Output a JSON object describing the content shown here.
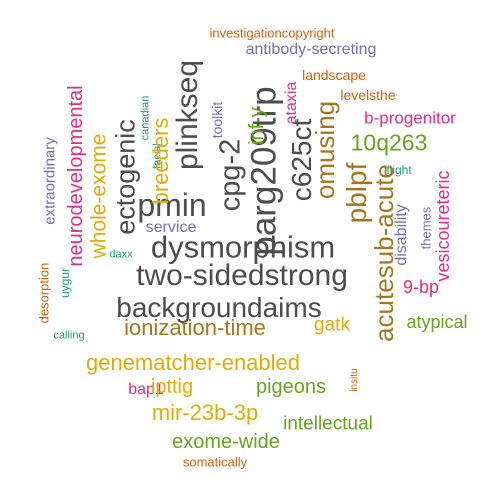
{
  "palette": {
    "grey": "#4d4d4d",
    "orange": "#d95f02",
    "purple": "#7570b3",
    "magenta": "#e7298a",
    "green": "#66a61e",
    "gold": "#e6ab02",
    "brown": "#a6761d",
    "teal": "#1b9e77"
  },
  "words": [
    {
      "text": "investigationcopyright",
      "color": "orange"
    },
    {
      "text": "antibody-secreting",
      "color": "purple"
    },
    {
      "text": "landscape",
      "color": "orange"
    },
    {
      "text": "levelsthe",
      "color": "orange"
    },
    {
      "text": "b-progenitor",
      "color": "magenta"
    },
    {
      "text": "10q263",
      "color": "green"
    },
    {
      "text": "flight",
      "color": "teal"
    },
    {
      "text": "omusing",
      "color": "brown"
    },
    {
      "text": "pblpf",
      "color": "brown"
    },
    {
      "text": "c625ct",
      "color": "grey"
    },
    {
      "text": "ataxia",
      "color": "magenta"
    },
    {
      "text": "parg209trp",
      "color": "grey"
    },
    {
      "text": "cpg-2",
      "color": "grey"
    },
    {
      "text": "inf-y",
      "color": "green"
    },
    {
      "text": "toolkit",
      "color": "purple"
    },
    {
      "text": "plinkseq",
      "color": "grey"
    },
    {
      "text": "canadian",
      "color": "teal"
    },
    {
      "text": "facial",
      "color": "teal"
    },
    {
      "text": "pmin",
      "color": "grey"
    },
    {
      "text": "breeders",
      "color": "gold"
    },
    {
      "text": "ectogenic",
      "color": "grey"
    },
    {
      "text": "whole-exome",
      "color": "gold"
    },
    {
      "text": "neurodevelopmental",
      "color": "magenta"
    },
    {
      "text": "extraordinary",
      "color": "purple"
    },
    {
      "text": "service",
      "color": "purple"
    },
    {
      "text": "dysmorphism",
      "color": "grey"
    },
    {
      "text": "two-sidedstrong",
      "color": "grey"
    },
    {
      "text": "daxx",
      "color": "teal"
    },
    {
      "text": "acutesub-acute",
      "color": "brown"
    },
    {
      "text": "disability",
      "color": "purple"
    },
    {
      "text": "themes",
      "color": "purple"
    },
    {
      "text": "vesicoureteric",
      "color": "magenta"
    },
    {
      "text": "9-bp",
      "color": "magenta"
    },
    {
      "text": "backgroundaims",
      "color": "grey"
    },
    {
      "text": "desorption",
      "color": "orange"
    },
    {
      "text": "uygur",
      "color": "teal"
    },
    {
      "text": "calling",
      "color": "teal"
    },
    {
      "text": "ionization-time",
      "color": "brown"
    },
    {
      "text": "gatk",
      "color": "gold"
    },
    {
      "text": "atypical",
      "color": "green"
    },
    {
      "text": "genematcher-enabled",
      "color": "gold"
    },
    {
      "text": "bap1",
      "color": "magenta"
    },
    {
      "text": "ipttig",
      "color": "gold"
    },
    {
      "text": "pigeons",
      "color": "green"
    },
    {
      "text": "insitu",
      "color": "orange"
    },
    {
      "text": "mir-23b-3p",
      "color": "gold"
    },
    {
      "text": "intellectual",
      "color": "green"
    },
    {
      "text": "exome-wide",
      "color": "green"
    },
    {
      "text": "somatically",
      "color": "orange"
    }
  ]
}
